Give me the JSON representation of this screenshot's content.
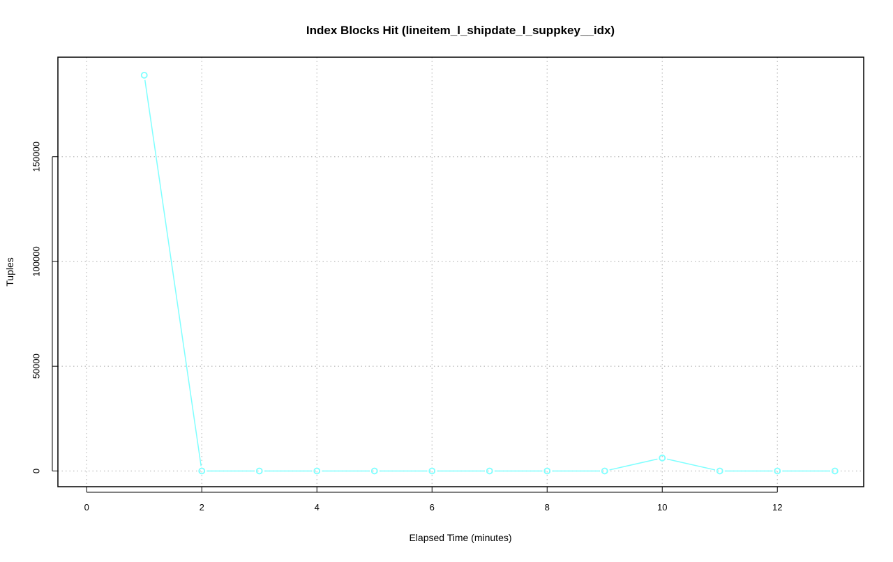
{
  "chart_data": {
    "type": "line",
    "title": "Index Blocks Hit (lineitem_l_shipdate_l_suppkey__idx)",
    "xlabel": "Elapsed Time (minutes)",
    "ylabel": "Tuples",
    "x": [
      1,
      2,
      3,
      4,
      5,
      6,
      7,
      8,
      9,
      10,
      11,
      12,
      13
    ],
    "series": [
      {
        "values": [
          188900,
          0,
          0,
          0,
          0,
          0,
          0,
          0,
          0,
          6200,
          0,
          0,
          0
        ],
        "color": "#7fffff"
      }
    ],
    "xlim": [
      -0.5,
      13.5
    ],
    "ylim": [
      -7500,
      197500
    ],
    "xticks": [
      0,
      2,
      4,
      6,
      8,
      10,
      12
    ],
    "xtick_labels": [
      "0",
      "2",
      "4",
      "6",
      "8",
      "10",
      "12"
    ],
    "yticks": [
      0,
      50000,
      100000,
      150000
    ],
    "ytick_labels": [
      "0",
      "50000",
      "100000",
      "150000"
    ],
    "grid": true,
    "legend": "none"
  }
}
